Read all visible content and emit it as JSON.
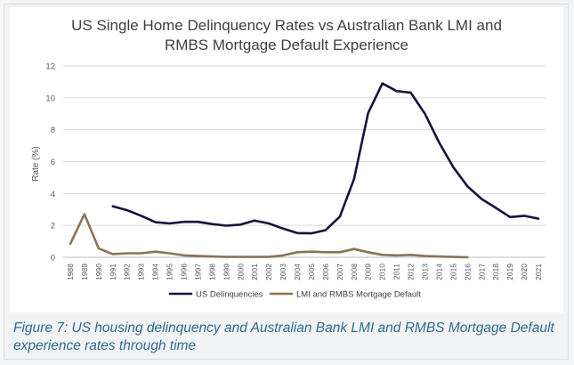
{
  "chart_data": {
    "type": "line",
    "title_line1": "US Single Home Delinquency Rates vs Australian Bank LMI and",
    "title_line2": "RMBS Mortgage Default Experience",
    "xlabel": "",
    "ylabel": "Rate (%)",
    "ylim": [
      0,
      12
    ],
    "yticks": [
      "0",
      "2",
      "4",
      "6",
      "8",
      "10",
      "12"
    ],
    "grid": true,
    "legend_position": "bottom",
    "x": [
      "1988",
      "1989",
      "1990",
      "1991",
      "1992",
      "1993",
      "1994",
      "1995",
      "1996",
      "1997",
      "1998",
      "1999",
      "2000",
      "2001",
      "2002",
      "2003",
      "2004",
      "2005",
      "2006",
      "2007",
      "2008",
      "2009",
      "2010",
      "2011",
      "2012",
      "2013",
      "2014",
      "2015",
      "2016",
      "2017",
      "2018",
      "2019",
      "2020",
      "2021"
    ],
    "series": [
      {
        "name": "US Delinquencies",
        "color": "#14143c",
        "values": [
          null,
          null,
          null,
          3.2,
          2.95,
          2.6,
          2.2,
          2.12,
          2.22,
          2.22,
          2.08,
          1.98,
          2.05,
          2.3,
          2.12,
          1.8,
          1.52,
          1.5,
          1.7,
          2.55,
          4.9,
          9.05,
          10.9,
          10.42,
          10.32,
          9.0,
          7.2,
          5.65,
          4.45,
          3.65,
          3.1,
          2.52,
          2.6,
          2.42
        ]
      },
      {
        "name": "LMI and RMBS Mortgage Default",
        "color": "#8b7355",
        "values": [
          0.85,
          2.7,
          0.55,
          0.2,
          0.25,
          0.25,
          0.35,
          0.25,
          0.12,
          0.08,
          0.05,
          0.02,
          0.02,
          0.02,
          0.02,
          0.12,
          0.32,
          0.35,
          0.32,
          0.32,
          0.52,
          0.32,
          0.15,
          0.12,
          0.15,
          0.08,
          0.05,
          0.02,
          0.0,
          null,
          null,
          null,
          null,
          null
        ]
      }
    ]
  },
  "caption": "Figure 7: US housing delinquency and Australian Bank LMI and RMBS Mortgage Default experience rates through time"
}
